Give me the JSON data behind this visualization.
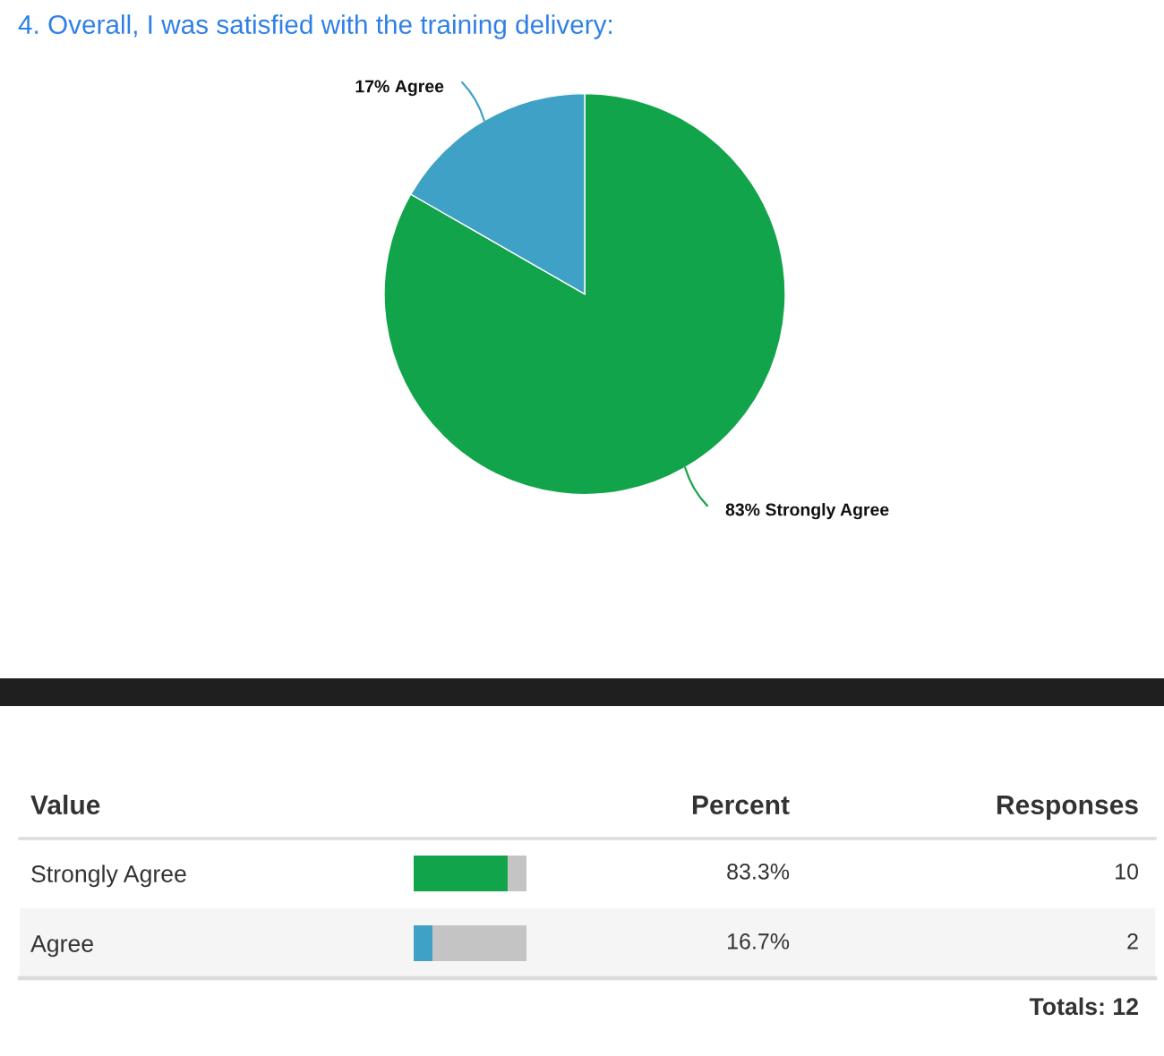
{
  "chart_data": [
    {
      "type": "pie",
      "title": "4. Overall, I was satisfied with the training delivery:",
      "categories": [
        "Strongly Agree",
        "Agree"
      ],
      "values": [
        83.3,
        16.7
      ],
      "colors": [
        "#12a44a",
        "#3fa1c5"
      ],
      "value_labels": [
        "83%",
        "17%"
      ]
    },
    {
      "type": "bar",
      "orientation": "horizontal",
      "stacked": true,
      "tick_labels": "y",
      "ylabel": "Value",
      "categories": [
        "Strongly Agree",
        "Agree"
      ],
      "xlim": [
        0,
        100
      ],
      "series": [
        {
          "values": [
            83.3,
            16.7
          ],
          "colors": [
            "#12a44a",
            "#3fa1c5"
          ],
          "value_labels": [
            "83.3%",
            "16.7%"
          ]
        },
        {
          "values": [
            16.7,
            83.3
          ],
          "color": "#c4c4c4"
        }
      ],
      "annotations": [
        "Percent",
        "Responses",
        "10",
        "2",
        "Totals: 12"
      ]
    }
  ]
}
